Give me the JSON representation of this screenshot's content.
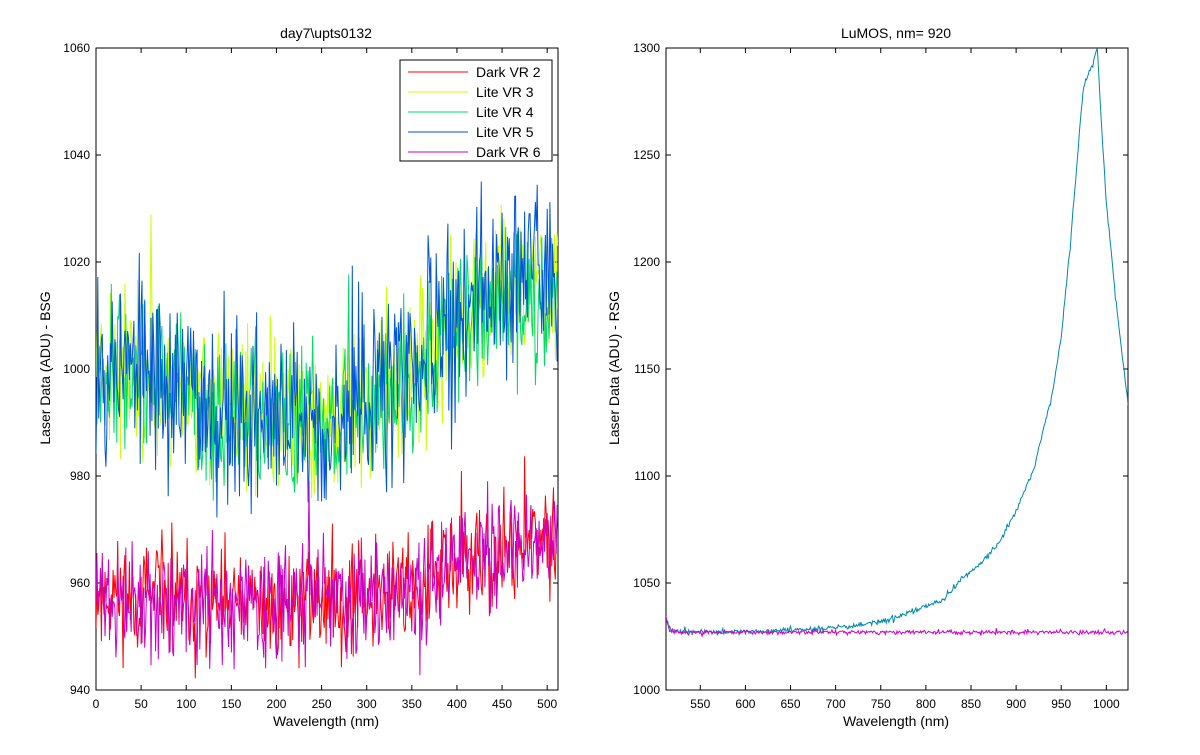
{
  "chart_data": [
    {
      "type": "line",
      "title": "day7\\upts0132",
      "xlabel": "Wavelength (nm)",
      "ylabel": "Laser Data (ADU) - BSG",
      "xlim": [
        0,
        512
      ],
      "ylim": [
        940,
        1060
      ],
      "xticks": [
        0,
        50,
        100,
        150,
        200,
        250,
        300,
        350,
        400,
        450,
        500
      ],
      "yticks": [
        940,
        960,
        980,
        1000,
        1020,
        1040,
        1060
      ],
      "grid": false,
      "legend": "top-right",
      "x": [
        0,
        25,
        50,
        75,
        100,
        125,
        150,
        175,
        200,
        225,
        250,
        275,
        300,
        325,
        350,
        375,
        400,
        425,
        450,
        475,
        500,
        512
      ],
      "series": [
        {
          "name": "Dark VR 2",
          "color": "#ff0000",
          "noise": 5,
          "seed": 11,
          "values": [
            958,
            958,
            957,
            957,
            956,
            956,
            956,
            956,
            956,
            957,
            957,
            957,
            958,
            959,
            960,
            961,
            963,
            964,
            965,
            967,
            968,
            969
          ]
        },
        {
          "name": "Lite VR 3",
          "color": "#ccff00",
          "noise": 7,
          "seed": 23,
          "values": [
            1003,
            1002,
            999,
            998,
            996,
            994,
            992,
            991,
            990,
            990,
            991,
            992,
            994,
            996,
            1000,
            1004,
            1008,
            1011,
            1013,
            1014,
            1015,
            1016
          ]
        },
        {
          "name": "Lite VR 4",
          "color": "#00dd66",
          "noise": 7,
          "seed": 37,
          "values": [
            1002,
            1001,
            998,
            997,
            995,
            993,
            991,
            990,
            989,
            989,
            990,
            992,
            993,
            996,
            999,
            1003,
            1007,
            1010,
            1012,
            1013,
            1014,
            1015
          ]
        },
        {
          "name": "Lite VR 5",
          "color": "#0055dd",
          "noise": 9,
          "seed": 53,
          "values": [
            1003,
            1002,
            999,
            998,
            996,
            994,
            992,
            991,
            990,
            990,
            991,
            992,
            994,
            997,
            1000,
            1005,
            1009,
            1013,
            1016,
            1019,
            1021,
            1022
          ]
        },
        {
          "name": "Dark VR 6",
          "color": "#cc00cc",
          "noise": 5,
          "seed": 71,
          "values": [
            957,
            957,
            956,
            956,
            956,
            956,
            955,
            955,
            956,
            956,
            957,
            957,
            958,
            959,
            960,
            961,
            963,
            964,
            965,
            967,
            968,
            969
          ]
        }
      ]
    },
    {
      "type": "line",
      "title": "LuMOS, nm= 920",
      "xlabel": "Wavelength (nm)",
      "ylabel": "Laser Data (ADU) - RSG",
      "xlim": [
        512,
        1024
      ],
      "ylim": [
        1000,
        1300
      ],
      "xticks": [
        550,
        600,
        650,
        700,
        750,
        800,
        850,
        900,
        950,
        1000
      ],
      "yticks": [
        1000,
        1050,
        1100,
        1150,
        1200,
        1250,
        1300
      ],
      "grid": false,
      "x": [
        512,
        515,
        520,
        530,
        550,
        600,
        650,
        700,
        740,
        760,
        780,
        800,
        820,
        840,
        860,
        880,
        900,
        920,
        940,
        950,
        960,
        970,
        975,
        980,
        985,
        990,
        995,
        1000,
        1010,
        1020,
        1024
      ],
      "series": [
        {
          "color": "#0088aa",
          "noise": 0.6,
          "seed": 97,
          "values": [
            1035,
            1030,
            1028,
            1027,
            1027,
            1027,
            1028,
            1029,
            1031,
            1033,
            1036,
            1039,
            1042,
            1052,
            1059,
            1068,
            1083,
            1104,
            1138,
            1165,
            1208,
            1260,
            1283,
            1288,
            1292,
            1300,
            1262,
            1228,
            1184,
            1148,
            1134
          ]
        },
        {
          "color": "#cc00cc",
          "noise": 0.5,
          "seed": 113,
          "values": [
            1035,
            1029,
            1027,
            1027,
            1027,
            1027,
            1027,
            1027,
            1027,
            1027,
            1027,
            1027,
            1027,
            1027,
            1027,
            1027,
            1027,
            1027,
            1027,
            1027,
            1027,
            1027,
            1027,
            1027,
            1027,
            1027,
            1027,
            1027,
            1027,
            1027,
            1027
          ]
        }
      ]
    }
  ]
}
